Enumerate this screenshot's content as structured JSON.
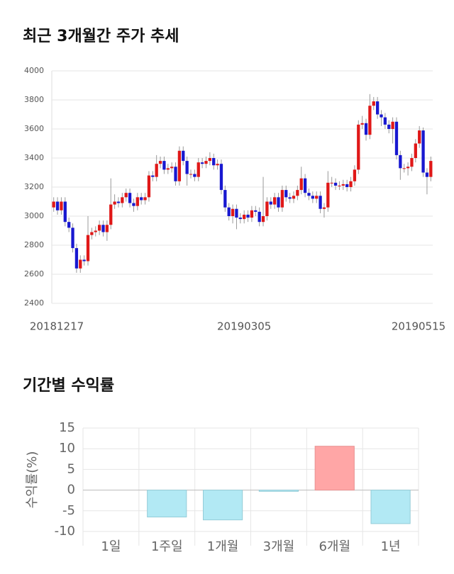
{
  "chart_data": [
    {
      "type": "candlestick",
      "title": "최근 3개월간 주가 추세",
      "categories": [
        "20181217",
        null,
        null,
        null,
        null,
        null,
        null,
        null,
        null,
        null,
        null,
        null,
        null,
        null,
        null,
        null,
        null,
        null,
        null,
        null,
        null,
        null,
        null,
        null,
        null,
        null,
        null,
        null,
        null,
        null,
        null,
        null,
        null,
        null,
        null,
        null,
        null,
        null,
        null,
        null,
        null,
        null,
        null,
        null,
        null,
        null,
        null,
        null,
        null,
        null,
        "20190305",
        null,
        null,
        null,
        null,
        null,
        null,
        null,
        null,
        null,
        null,
        null,
        null,
        null,
        null,
        null,
        null,
        null,
        null,
        null,
        null,
        null,
        null,
        null,
        null,
        null,
        null,
        null,
        null,
        null,
        null,
        null,
        null,
        null,
        null,
        null,
        null,
        null,
        null,
        null,
        null,
        null,
        null,
        null,
        null,
        null,
        null,
        null,
        null,
        "20190515"
      ],
      "open": [
        3060,
        3100,
        3040,
        3100,
        2960,
        2920,
        2780,
        2640,
        2700,
        2690,
        2870,
        2890,
        2900,
        2940,
        2890,
        2940,
        3080,
        3100,
        3090,
        3130,
        3160,
        3090,
        3070,
        3130,
        3110,
        3130,
        3280,
        3270,
        3360,
        3380,
        3320,
        3330,
        3340,
        3240,
        3450,
        3380,
        3290,
        3290,
        3270,
        3370,
        3360,
        3380,
        3400,
        3350,
        3360,
        3180,
        3060,
        3000,
        3050,
        2990,
        2980,
        3010,
        2990,
        3040,
        3030,
        2960,
        3000,
        3100,
        3080,
        3130,
        3060,
        3180,
        3130,
        3120,
        3140,
        3180,
        3260,
        3160,
        3140,
        3120,
        3140,
        3050,
        3060,
        3230,
        3230,
        3210,
        3210,
        3220,
        3200,
        3240,
        3320,
        3630,
        3640,
        3560,
        3760,
        3790,
        3700,
        3680,
        3630,
        3600,
        3650,
        3420,
        3330,
        3330,
        3340,
        3400,
        3500,
        3590,
        3300,
        3270
      ],
      "high": [
        3130,
        3130,
        3130,
        3130,
        2990,
        2950,
        2810,
        2730,
        2730,
        3000,
        2920,
        2930,
        2970,
        2970,
        2970,
        3260,
        3150,
        3130,
        3160,
        3190,
        3190,
        3120,
        3160,
        3160,
        3160,
        3310,
        3310,
        3420,
        3410,
        3410,
        3360,
        3370,
        3370,
        3480,
        3480,
        3410,
        3320,
        3320,
        3400,
        3400,
        3410,
        3440,
        3430,
        3390,
        3390,
        3210,
        3090,
        3080,
        3080,
        3020,
        3040,
        3040,
        3070,
        3070,
        3060,
        3270,
        3130,
        3130,
        3160,
        3160,
        3210,
        3210,
        3160,
        3170,
        3210,
        3340,
        3290,
        3190,
        3170,
        3170,
        3170,
        3090,
        3310,
        3270,
        3260,
        3240,
        3250,
        3250,
        3270,
        3350,
        3660,
        3690,
        3670,
        3840,
        3820,
        3820,
        3730,
        3710,
        3660,
        3680,
        3680,
        3450,
        3360,
        3370,
        3430,
        3530,
        3620,
        3610,
        3330,
        3410
      ],
      "low": [
        3030,
        3010,
        3010,
        2930,
        2890,
        2750,
        2610,
        2610,
        2660,
        2660,
        2840,
        2860,
        2870,
        2860,
        2830,
        2910,
        3050,
        3060,
        3060,
        3100,
        3060,
        3030,
        3040,
        3080,
        3080,
        3100,
        3240,
        3240,
        3330,
        3290,
        3290,
        3300,
        3210,
        3210,
        3350,
        3210,
        3260,
        3240,
        3240,
        3330,
        3330,
        3350,
        3320,
        3320,
        3150,
        3030,
        2970,
        2950,
        2910,
        2950,
        2950,
        2960,
        2960,
        3000,
        2930,
        2930,
        2970,
        3050,
        3050,
        3030,
        3030,
        3100,
        3090,
        3090,
        3110,
        3150,
        3130,
        3110,
        3090,
        3090,
        3020,
        2990,
        3030,
        3200,
        3180,
        3180,
        3180,
        3170,
        3170,
        3210,
        3290,
        3600,
        3520,
        3530,
        3730,
        3670,
        3620,
        3600,
        3570,
        3500,
        3390,
        3250,
        3300,
        3280,
        3310,
        3370,
        3470,
        3270,
        3150,
        3240
      ],
      "close": [
        3100,
        3040,
        3100,
        2960,
        2920,
        2780,
        2640,
        2700,
        2690,
        2870,
        2890,
        2900,
        2940,
        2890,
        2940,
        3080,
        3100,
        3090,
        3130,
        3160,
        3090,
        3070,
        3130,
        3110,
        3130,
        3280,
        3270,
        3360,
        3380,
        3320,
        3330,
        3340,
        3240,
        3450,
        3380,
        3290,
        3290,
        3270,
        3370,
        3360,
        3380,
        3400,
        3350,
        3360,
        3180,
        3060,
        3000,
        3050,
        2990,
        2980,
        3010,
        2990,
        3040,
        3030,
        2960,
        3000,
        3100,
        3080,
        3130,
        3060,
        3180,
        3130,
        3120,
        3140,
        3180,
        3260,
        3160,
        3140,
        3120,
        3140,
        3050,
        3060,
        3230,
        3230,
        3210,
        3210,
        3220,
        3200,
        3240,
        3320,
        3630,
        3640,
        3560,
        3760,
        3790,
        3700,
        3680,
        3630,
        3600,
        3650,
        3420,
        3330,
        3330,
        3340,
        3400,
        3500,
        3590,
        3300,
        3270,
        3380
      ],
      "up_color": "#e01818",
      "down_color": "#1818d0",
      "ylim": [
        2400,
        4000
      ],
      "yticks": [
        2400,
        2600,
        2800,
        3000,
        3200,
        3400,
        3600,
        3800,
        4000
      ],
      "grid": true
    },
    {
      "type": "bar",
      "title": "기간별 수익률",
      "ylabel": "수익률(%)",
      "categories": [
        "1일",
        "1주일",
        "1개월",
        "3개월",
        "6개월",
        "1년"
      ],
      "values": [
        0,
        -6.5,
        -7.2,
        -0.3,
        10.6,
        -8.1
      ],
      "positive_color": "#ffa6a6",
      "negative_color": "#b2e9f4",
      "ylim": [
        -10,
        15
      ],
      "yticks": [
        -10,
        -5,
        0,
        5,
        10,
        15
      ],
      "grid": true
    }
  ]
}
